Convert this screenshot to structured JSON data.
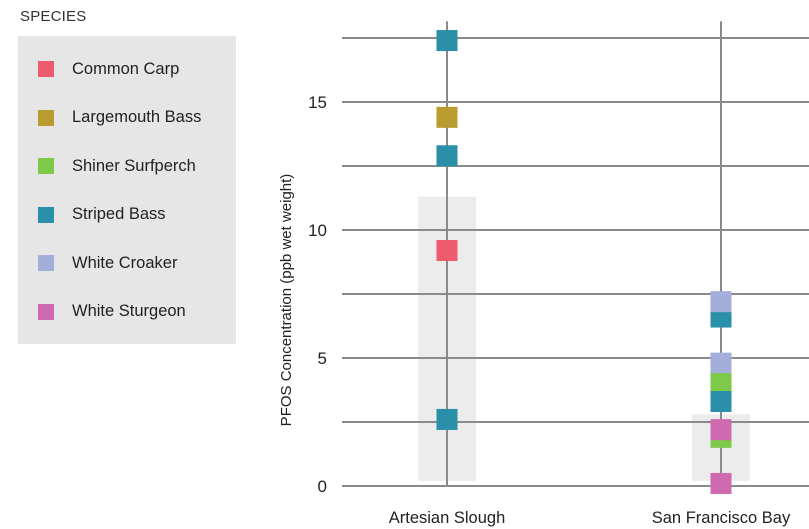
{
  "chart_data": {
    "type": "scatter",
    "legend_title": "SPECIES",
    "legend_position": "left",
    "ylabel": "PFOS Concentration (ppb wet weight)",
    "xlabel": "",
    "ylim": [
      0,
      18
    ],
    "yticks": [
      0,
      5,
      10,
      15
    ],
    "ygrid_lines": [
      0,
      2.5,
      5,
      7.5,
      10,
      12.5,
      15,
      17.5
    ],
    "categories": [
      "Artesian Slough",
      "San Francisco Bay"
    ],
    "ranges": [
      {
        "category": "Artesian Slough",
        "low": 0.2,
        "high": 11.3
      },
      {
        "category": "San Francisco Bay",
        "low": 0.2,
        "high": 2.8
      }
    ],
    "species": [
      {
        "name": "Common Carp",
        "color": "#ef5b6e"
      },
      {
        "name": "Largemouth Bass",
        "color": "#b99b2f"
      },
      {
        "name": "Shiner Surfperch",
        "color": "#7fc94a"
      },
      {
        "name": "Striped Bass",
        "color": "#2a8fa8"
      },
      {
        "name": "White Croaker",
        "color": "#a4aedb"
      },
      {
        "name": "White Sturgeon",
        "color": "#d06ab0"
      }
    ],
    "points": [
      {
        "category": "Artesian Slough",
        "species": "Striped Bass",
        "value": 17.4
      },
      {
        "category": "Artesian Slough",
        "species": "Largemouth Bass",
        "value": 14.4
      },
      {
        "category": "Artesian Slough",
        "species": "Striped Bass",
        "value": 12.9
      },
      {
        "category": "Artesian Slough",
        "species": "Common Carp",
        "value": 9.2
      },
      {
        "category": "Artesian Slough",
        "species": "Striped Bass",
        "value": 2.6
      },
      {
        "category": "San Francisco Bay",
        "species": "Striped Bass",
        "value": 6.6
      },
      {
        "category": "San Francisco Bay",
        "species": "White Croaker",
        "value": 7.2
      },
      {
        "category": "San Francisco Bay",
        "species": "White Croaker",
        "value": 4.8
      },
      {
        "category": "San Francisco Bay",
        "species": "Shiner Surfperch",
        "value": 4.0
      },
      {
        "category": "San Francisco Bay",
        "species": "Striped Bass",
        "value": 3.3
      },
      {
        "category": "San Francisco Bay",
        "species": "Shiner Surfperch",
        "value": 1.9
      },
      {
        "category": "San Francisco Bay",
        "species": "White Sturgeon",
        "value": 2.2
      },
      {
        "category": "San Francisco Bay",
        "species": "White Sturgeon",
        "value": 0.1
      }
    ]
  }
}
